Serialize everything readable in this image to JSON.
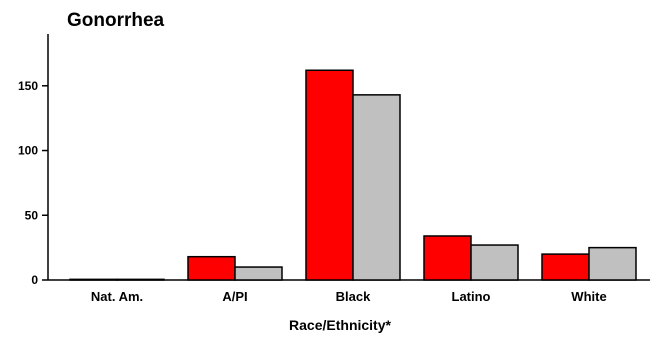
{
  "chart_data": {
    "type": "bar",
    "title": "Gonorrhea",
    "xlabel": "Race/Ethnicity*",
    "ylabel": "",
    "ylim": [
      0,
      190
    ],
    "yticks": [
      0,
      50,
      100,
      150
    ],
    "categories": [
      "Nat. Am.",
      "A/PI",
      "Black",
      "Latino",
      "White"
    ],
    "series": [
      {
        "color": "#ff0000",
        "values": [
          0.5,
          18,
          162,
          34,
          20
        ]
      },
      {
        "color": "#c0c0c0",
        "values": [
          0.5,
          10,
          143,
          27,
          25
        ]
      }
    ],
    "grid": false,
    "legend": "none"
  }
}
